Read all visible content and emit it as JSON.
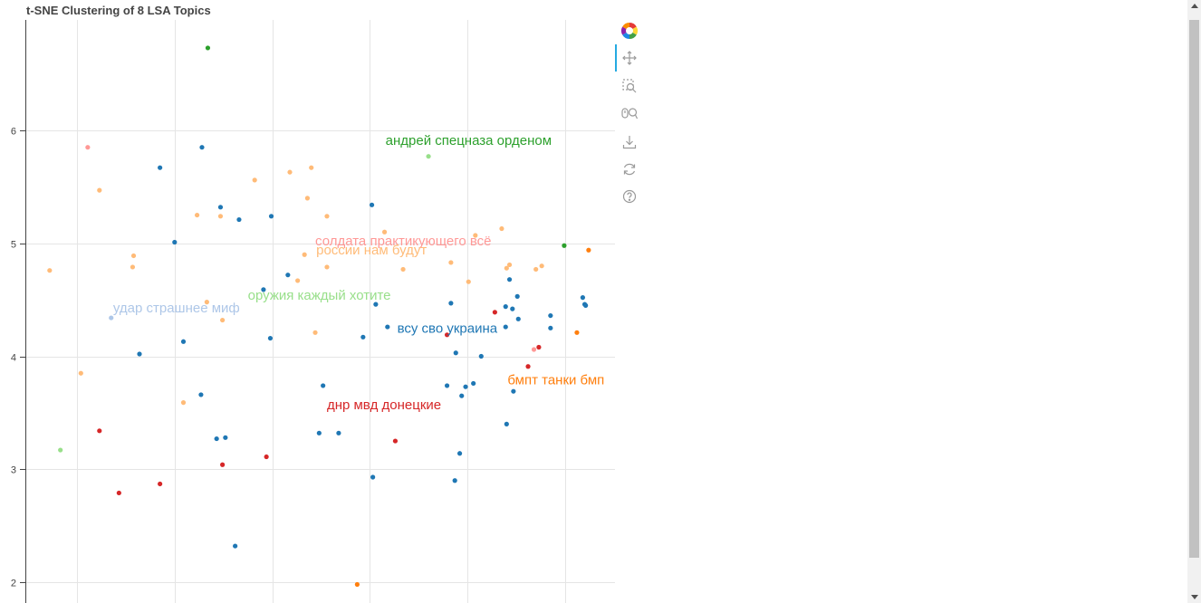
{
  "chart_data": {
    "type": "scatter",
    "title": "t-SNE Clustering of 8 LSA Topics",
    "xlabel": "",
    "ylabel": "",
    "xlim": [
      -2.5,
      3.5
    ],
    "ylim": [
      1.8,
      6.95
    ],
    "xticks": [
      -2,
      -1,
      0,
      1,
      2,
      3
    ],
    "yticks": [
      2,
      3,
      4,
      5,
      6
    ],
    "ytick_labels": [
      "2",
      "3",
      "4",
      "5",
      "6"
    ],
    "grid": true,
    "legend": "none",
    "series": [
      {
        "color": "#1f77b4",
        "points": [
          [
            -1.15,
            5.67
          ],
          [
            -0.72,
            5.85
          ],
          [
            -0.53,
            5.32
          ],
          [
            -0.34,
            5.21
          ],
          [
            -0.01,
            5.24
          ],
          [
            1.02,
            5.34
          ],
          [
            -1.0,
            5.01
          ],
          [
            0.16,
            4.72
          ],
          [
            -0.09,
            4.59
          ],
          [
            1.06,
            4.46
          ],
          [
            1.18,
            4.26
          ],
          [
            0.93,
            4.17
          ],
          [
            -0.02,
            4.16
          ],
          [
            -1.36,
            4.02
          ],
          [
            -0.91,
            4.13
          ],
          [
            -0.73,
            3.66
          ],
          [
            -0.57,
            3.27
          ],
          [
            -0.48,
            3.28
          ],
          [
            0.52,
            3.74
          ],
          [
            0.48,
            3.32
          ],
          [
            0.68,
            3.32
          ],
          [
            1.83,
            4.47
          ],
          [
            1.88,
            4.03
          ],
          [
            1.98,
            3.73
          ],
          [
            2.06,
            3.76
          ],
          [
            2.14,
            4.0
          ],
          [
            1.94,
            3.65
          ],
          [
            1.79,
            3.74
          ],
          [
            2.43,
            4.68
          ],
          [
            2.46,
            4.42
          ],
          [
            2.39,
            4.44
          ],
          [
            2.51,
            4.53
          ],
          [
            2.39,
            4.26
          ],
          [
            2.52,
            4.33
          ],
          [
            2.85,
            4.36
          ],
          [
            2.85,
            4.25
          ],
          [
            3.18,
            4.52
          ],
          [
            3.21,
            4.45
          ],
          [
            3.2,
            4.46
          ],
          [
            2.4,
            3.4
          ],
          [
            2.47,
            3.69
          ],
          [
            1.92,
            3.14
          ],
          [
            1.87,
            2.9
          ],
          [
            1.03,
            2.93
          ],
          [
            -0.38,
            2.32
          ]
        ]
      },
      {
        "color": "#ffbb78",
        "points": [
          [
            -2.28,
            4.76
          ],
          [
            -1.77,
            5.47
          ],
          [
            -1.42,
            4.89
          ],
          [
            -1.43,
            4.79
          ],
          [
            -0.77,
            5.25
          ],
          [
            -0.53,
            5.24
          ],
          [
            -0.67,
            4.48
          ],
          [
            -0.51,
            4.32
          ],
          [
            -0.91,
            3.59
          ],
          [
            -1.96,
            3.85
          ],
          [
            -0.18,
            5.56
          ],
          [
            0.18,
            5.63
          ],
          [
            0.4,
            5.67
          ],
          [
            0.36,
            5.4
          ],
          [
            0.56,
            5.24
          ],
          [
            0.33,
            4.9
          ],
          [
            0.56,
            4.79
          ],
          [
            0.26,
            4.67
          ],
          [
            0.44,
            4.21
          ],
          [
            1.15,
            5.1
          ],
          [
            1.34,
            4.77
          ],
          [
            1.83,
            4.83
          ],
          [
            2.08,
            5.07
          ],
          [
            2.35,
            5.13
          ],
          [
            2.4,
            4.78
          ],
          [
            2.43,
            4.81
          ],
          [
            2.7,
            4.77
          ],
          [
            2.76,
            4.8
          ],
          [
            2.01,
            4.66
          ]
        ]
      },
      {
        "color": "#2ca02c",
        "points": [
          [
            -0.66,
            6.73
          ],
          [
            2.99,
            4.98
          ]
        ]
      },
      {
        "color": "#98df8a",
        "points": [
          [
            1.6,
            5.77
          ],
          [
            -2.17,
            3.17
          ]
        ]
      },
      {
        "color": "#d62728",
        "points": [
          [
            -1.77,
            3.34
          ],
          [
            -1.57,
            2.79
          ],
          [
            -1.15,
            2.87
          ],
          [
            -0.51,
            3.04
          ],
          [
            -0.06,
            3.11
          ],
          [
            1.26,
            3.25
          ],
          [
            1.79,
            4.19
          ],
          [
            2.28,
            4.39
          ],
          [
            2.62,
            3.91
          ],
          [
            2.73,
            4.08
          ]
        ]
      },
      {
        "color": "#ff9896",
        "points": [
          [
            -1.89,
            5.85
          ],
          [
            2.68,
            4.06
          ]
        ]
      },
      {
        "color": "#ff7f0e",
        "points": [
          [
            0.87,
            1.98
          ],
          [
            3.12,
            4.21
          ],
          [
            3.24,
            4.94
          ]
        ]
      },
      {
        "color": "#aec7e8",
        "points": [
          [
            -1.65,
            4.34
          ]
        ]
      }
    ],
    "annotations": [
      {
        "text": "андрей спецназа орденом",
        "x": 1.16,
        "y": 5.87,
        "color": "#2ca02c"
      },
      {
        "text": "солдата практикующего всё",
        "x": 0.44,
        "y": 4.98,
        "color": "#ff9896"
      },
      {
        "text": "россии нам будут",
        "x": 0.45,
        "y": 4.9,
        "color": "#ffbb78"
      },
      {
        "text": "оружия каждый хотите",
        "x": -0.25,
        "y": 4.5,
        "color": "#98df8a"
      },
      {
        "text": "удар страшнее миф",
        "x": -1.63,
        "y": 4.39,
        "color": "#aec7e8"
      },
      {
        "text": "всу сво украина",
        "x": 1.28,
        "y": 4.21,
        "color": "#1f77b4"
      },
      {
        "text": "бмпт танки бмп",
        "x": 2.41,
        "y": 3.75,
        "color": "#ff7f0e"
      },
      {
        "text": "днр мвд донецкие",
        "x": 0.56,
        "y": 3.53,
        "color": "#d62728"
      }
    ]
  },
  "toolbar": {
    "tools": [
      "bokeh-logo-icon",
      "pan-icon",
      "box-zoom-icon",
      "wheel-zoom-icon",
      "save-icon",
      "reset-icon",
      "help-icon"
    ]
  }
}
